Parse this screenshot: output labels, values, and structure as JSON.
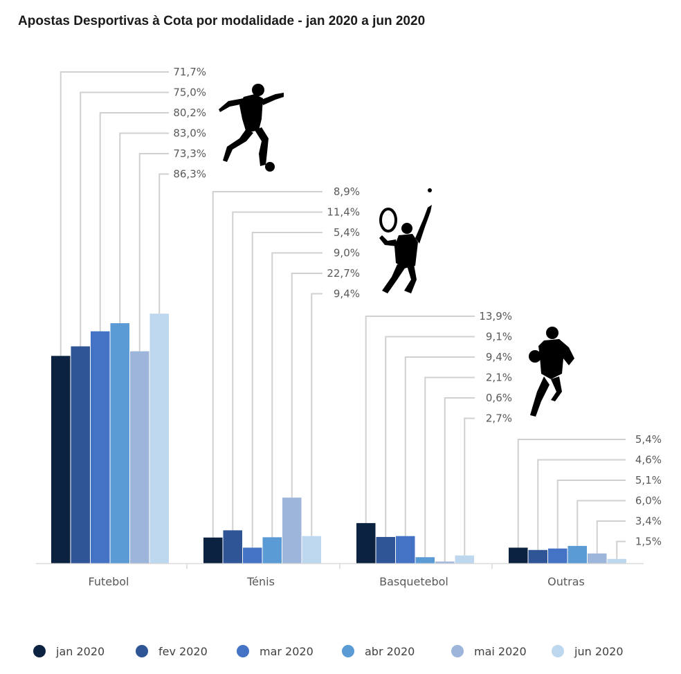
{
  "chart_data": {
    "type": "bar",
    "title": "Apostas Desportivas à Cota por modalidade - jan 2020 a jun 2020",
    "categories": [
      "Futebol",
      "Ténis",
      "Basquetebol",
      "Outras"
    ],
    "series": [
      {
        "name": "jan 2020",
        "color": "#0b2340",
        "values": [
          71.7,
          8.9,
          13.9,
          5.4
        ],
        "labels": [
          "71,7%",
          "8,9%",
          "13,9%",
          "5,4%"
        ]
      },
      {
        "name": "fev 2020",
        "color": "#2f5597",
        "values": [
          75.0,
          11.4,
          9.1,
          4.6
        ],
        "labels": [
          "75,0%",
          "11,4%",
          "9,1%",
          "4,6%"
        ]
      },
      {
        "name": "mar 2020",
        "color": "#4472c4",
        "values": [
          80.2,
          5.4,
          9.4,
          5.1
        ],
        "labels": [
          "80,2%",
          "5,4%",
          "9,4%",
          "5,1%"
        ]
      },
      {
        "name": "abr 2020",
        "color": "#5b9bd5",
        "values": [
          83.0,
          9.0,
          2.1,
          6.0
        ],
        "labels": [
          "83,0%",
          "9,0%",
          "2,1%",
          "6,0%"
        ]
      },
      {
        "name": "mai 2020",
        "color": "#9db5da",
        "values": [
          73.3,
          22.7,
          0.6,
          3.4
        ],
        "labels": [
          "73,3%",
          "22,7%",
          "0,6%",
          "3,4%"
        ]
      },
      {
        "name": "jun 2020",
        "color": "#bdd7ee",
        "values": [
          86.3,
          9.4,
          2.7,
          1.5
        ],
        "labels": [
          "86,3%",
          "9,4%",
          "2,7%",
          "1,5%"
        ]
      }
    ],
    "ylim": [
      0,
      100
    ],
    "grid": false,
    "legend": "bottom",
    "icons": [
      "football-player-icon",
      "tennis-player-icon",
      "basketball-player-icon"
    ]
  }
}
